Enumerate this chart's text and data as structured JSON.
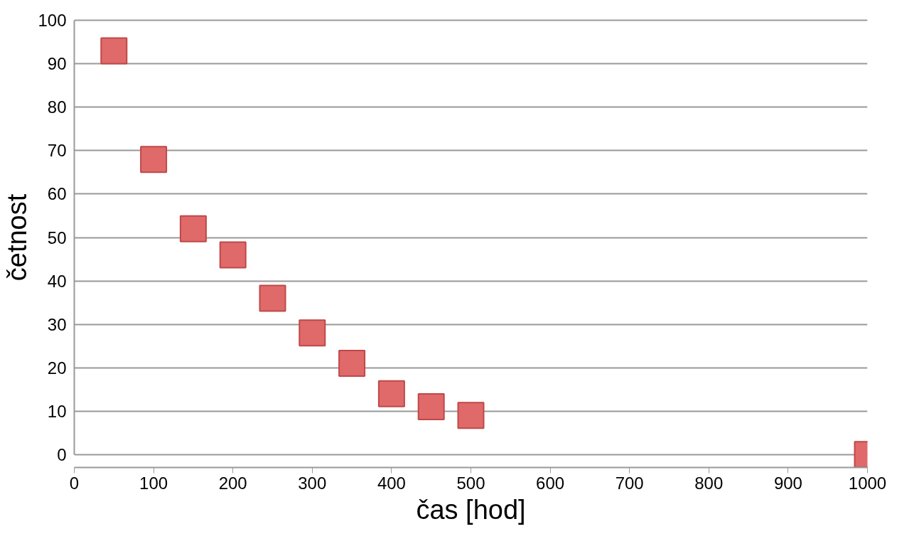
{
  "chart_data": {
    "type": "scatter",
    "xlabel": "čas [hod]",
    "ylabel": "četnost",
    "x": [
      50,
      100,
      150,
      200,
      250,
      300,
      350,
      400,
      450,
      500,
      1000
    ],
    "series": [
      {
        "color": "#e06a6a",
        "values": [
          93,
          68,
          52,
          46,
          36,
          28,
          21,
          14,
          11,
          9,
          0
        ]
      }
    ],
    "xlim": [
      0,
      1000
    ],
    "ylim": [
      0,
      100
    ],
    "xticks": [
      0,
      100,
      200,
      300,
      400,
      500,
      600,
      700,
      800,
      900,
      1000
    ],
    "yticks": [
      0,
      10,
      20,
      30,
      40,
      50,
      60,
      70,
      80,
      90,
      100
    ],
    "grid": "y",
    "marker": "square"
  }
}
